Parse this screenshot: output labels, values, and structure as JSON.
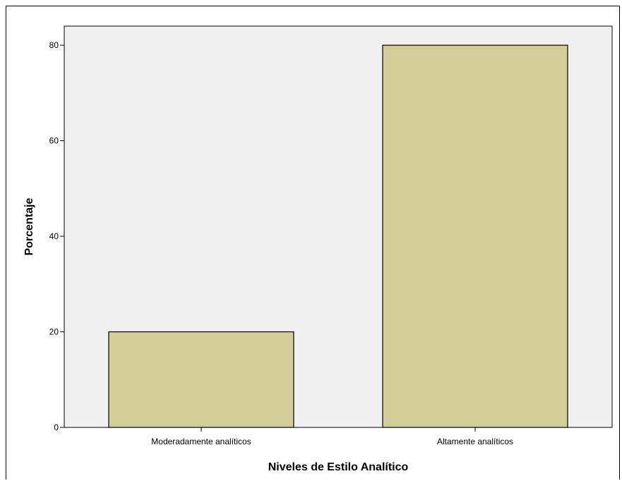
{
  "chart_data": {
    "type": "bar",
    "title": "",
    "xlabel": "Niveles de Estilo Analítico",
    "ylabel": "Porcentaje",
    "categories": [
      "Moderadamente analíticos",
      "Altamente analíticos"
    ],
    "values": [
      20,
      80
    ],
    "ylim": [
      0,
      84
    ],
    "yticks": [
      0,
      20,
      40,
      60,
      80
    ],
    "grid": false,
    "legend": "none",
    "colors": {
      "bar_fill": "#d3cd98",
      "bar_stroke": "#000000",
      "plot_background": "#f0f0f0",
      "axis": "#000000"
    }
  }
}
